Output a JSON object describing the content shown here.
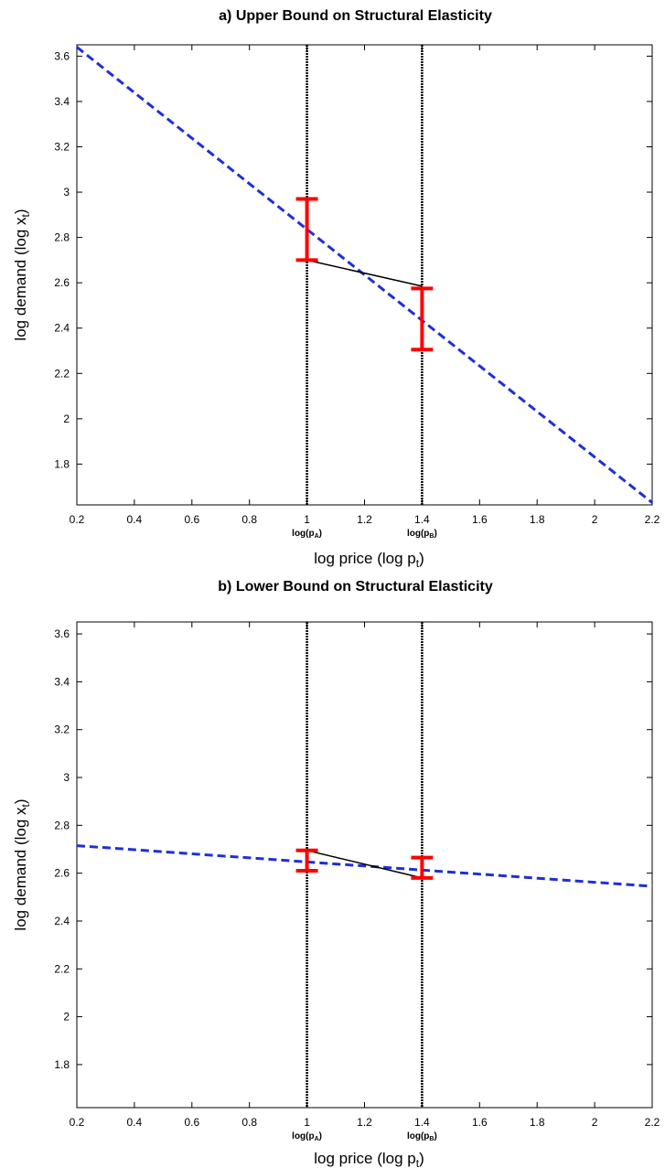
{
  "chart_data": [
    {
      "type": "line",
      "title": "a) Upper Bound on Structural Elasticity",
      "xlabel": "log price (log p",
      "xlabel_sub": "t",
      "ylabel": "log demand (log x",
      "ylabel_sub": "t",
      "xlim": [
        0.2,
        2.2
      ],
      "ylim": [
        1.62,
        3.65
      ],
      "xticks": [
        0.2,
        0.4,
        0.6,
        0.8,
        1,
        1.2,
        1.4,
        1.6,
        1.8,
        2,
        2.2
      ],
      "yticks": [
        1.8,
        2,
        2.2,
        2.4,
        2.6,
        2.8,
        3,
        3.2,
        3.4,
        3.6
      ],
      "grid": false,
      "vertical_markers": [
        {
          "x": 1.0,
          "label": "log(p",
          "sub": "A",
          "suffix": ")"
        },
        {
          "x": 1.4,
          "label": "log(p",
          "sub": "B",
          "suffix": ")"
        }
      ],
      "series": [
        {
          "style": "dashed",
          "color": "#1f2fd6",
          "x": [
            0.2,
            2.2
          ],
          "y": [
            3.64,
            1.63
          ]
        },
        {
          "style": "solid",
          "color": "#000000",
          "x": [
            1.0,
            1.4
          ],
          "y": [
            2.7,
            2.585
          ]
        }
      ],
      "error_bars": [
        {
          "x": 1.0,
          "low": 2.7,
          "high": 2.97,
          "color": "#ff0000"
        },
        {
          "x": 1.4,
          "low": 2.305,
          "high": 2.575,
          "color": "#ff0000"
        }
      ]
    },
    {
      "type": "line",
      "title": "b) Lower Bound on Structural Elasticity",
      "xlabel": "log price (log p",
      "xlabel_sub": "t",
      "ylabel": "log demand (log x",
      "ylabel_sub": "t",
      "xlim": [
        0.2,
        2.2
      ],
      "ylim": [
        1.62,
        3.65
      ],
      "xticks": [
        0.2,
        0.4,
        0.6,
        0.8,
        1,
        1.2,
        1.4,
        1.6,
        1.8,
        2,
        2.2
      ],
      "yticks": [
        1.8,
        2,
        2.2,
        2.4,
        2.6,
        2.8,
        3,
        3.2,
        3.4,
        3.6
      ],
      "grid": false,
      "vertical_markers": [
        {
          "x": 1.0,
          "label": "log(p",
          "sub": "A",
          "suffix": ")"
        },
        {
          "x": 1.4,
          "label": "log(p",
          "sub": "B",
          "suffix": ")"
        }
      ],
      "series": [
        {
          "style": "dashed",
          "color": "#1f2fd6",
          "x": [
            0.2,
            2.2
          ],
          "y": [
            2.715,
            2.545
          ]
        },
        {
          "style": "solid",
          "color": "#000000",
          "x": [
            1.0,
            1.4
          ],
          "y": [
            2.695,
            2.58
          ]
        }
      ],
      "error_bars": [
        {
          "x": 1.0,
          "low": 2.61,
          "high": 2.695,
          "color": "#ff0000"
        },
        {
          "x": 1.4,
          "low": 2.58,
          "high": 2.665,
          "color": "#ff0000"
        }
      ]
    }
  ]
}
